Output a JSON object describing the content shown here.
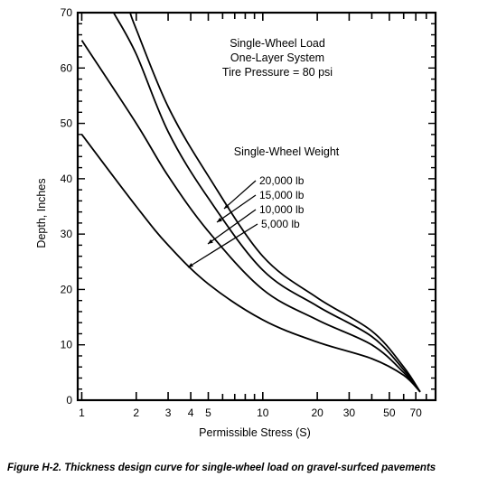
{
  "chart_data": {
    "type": "line",
    "xlabel": "Permissible Stress (S)",
    "ylabel": "Depth, Inches",
    "x_scale": "log",
    "xlim": [
      0.95,
      90
    ],
    "ylim": [
      0,
      70
    ],
    "x_ticks": [
      1,
      2,
      3,
      4,
      5,
      10,
      20,
      30,
      50,
      70
    ],
    "y_ticks": [
      0,
      10,
      20,
      30,
      40,
      50,
      60,
      70
    ],
    "grid": false,
    "annotation": {
      "title_lines": [
        "Single-Wheel Load",
        "One-Layer System",
        "Tire Pressure = 80 psi"
      ],
      "legend_title": "Single-Wheel Weight"
    },
    "series": [
      {
        "name": "20,000 lb",
        "points": [
          [
            1.85,
            70
          ],
          [
            2,
            67
          ],
          [
            3,
            53
          ],
          [
            5,
            40.5
          ],
          [
            10,
            26
          ],
          [
            20,
            18.5
          ],
          [
            40,
            12.5
          ],
          [
            60,
            6
          ],
          [
            74,
            1.5
          ]
        ]
      },
      {
        "name": "15,000 lb",
        "points": [
          [
            1.5,
            70
          ],
          [
            2,
            62.5
          ],
          [
            3,
            48.5
          ],
          [
            5,
            36.5
          ],
          [
            10,
            23.5
          ],
          [
            20,
            17
          ],
          [
            40,
            11.5
          ],
          [
            60,
            5.5
          ],
          [
            74,
            1.5
          ]
        ]
      },
      {
        "name": "10,000 lb",
        "points": [
          [
            1,
            65
          ],
          [
            2,
            50
          ],
          [
            3,
            40.5
          ],
          [
            5,
            30.5
          ],
          [
            10,
            20
          ],
          [
            20,
            14.5
          ],
          [
            40,
            10
          ],
          [
            60,
            5
          ],
          [
            74,
            1.5
          ]
        ]
      },
      {
        "name": "5,000 lb",
        "points": [
          [
            1,
            48
          ],
          [
            2,
            35
          ],
          [
            3,
            28
          ],
          [
            5,
            21
          ],
          [
            10,
            14.5
          ],
          [
            20,
            10.5
          ],
          [
            40,
            7.5
          ],
          [
            60,
            4.5
          ],
          [
            74,
            1.5
          ]
        ]
      }
    ],
    "caption": "Figure H-2.  Thickness design curve for single-wheel load on gravel-surfced pavements"
  }
}
